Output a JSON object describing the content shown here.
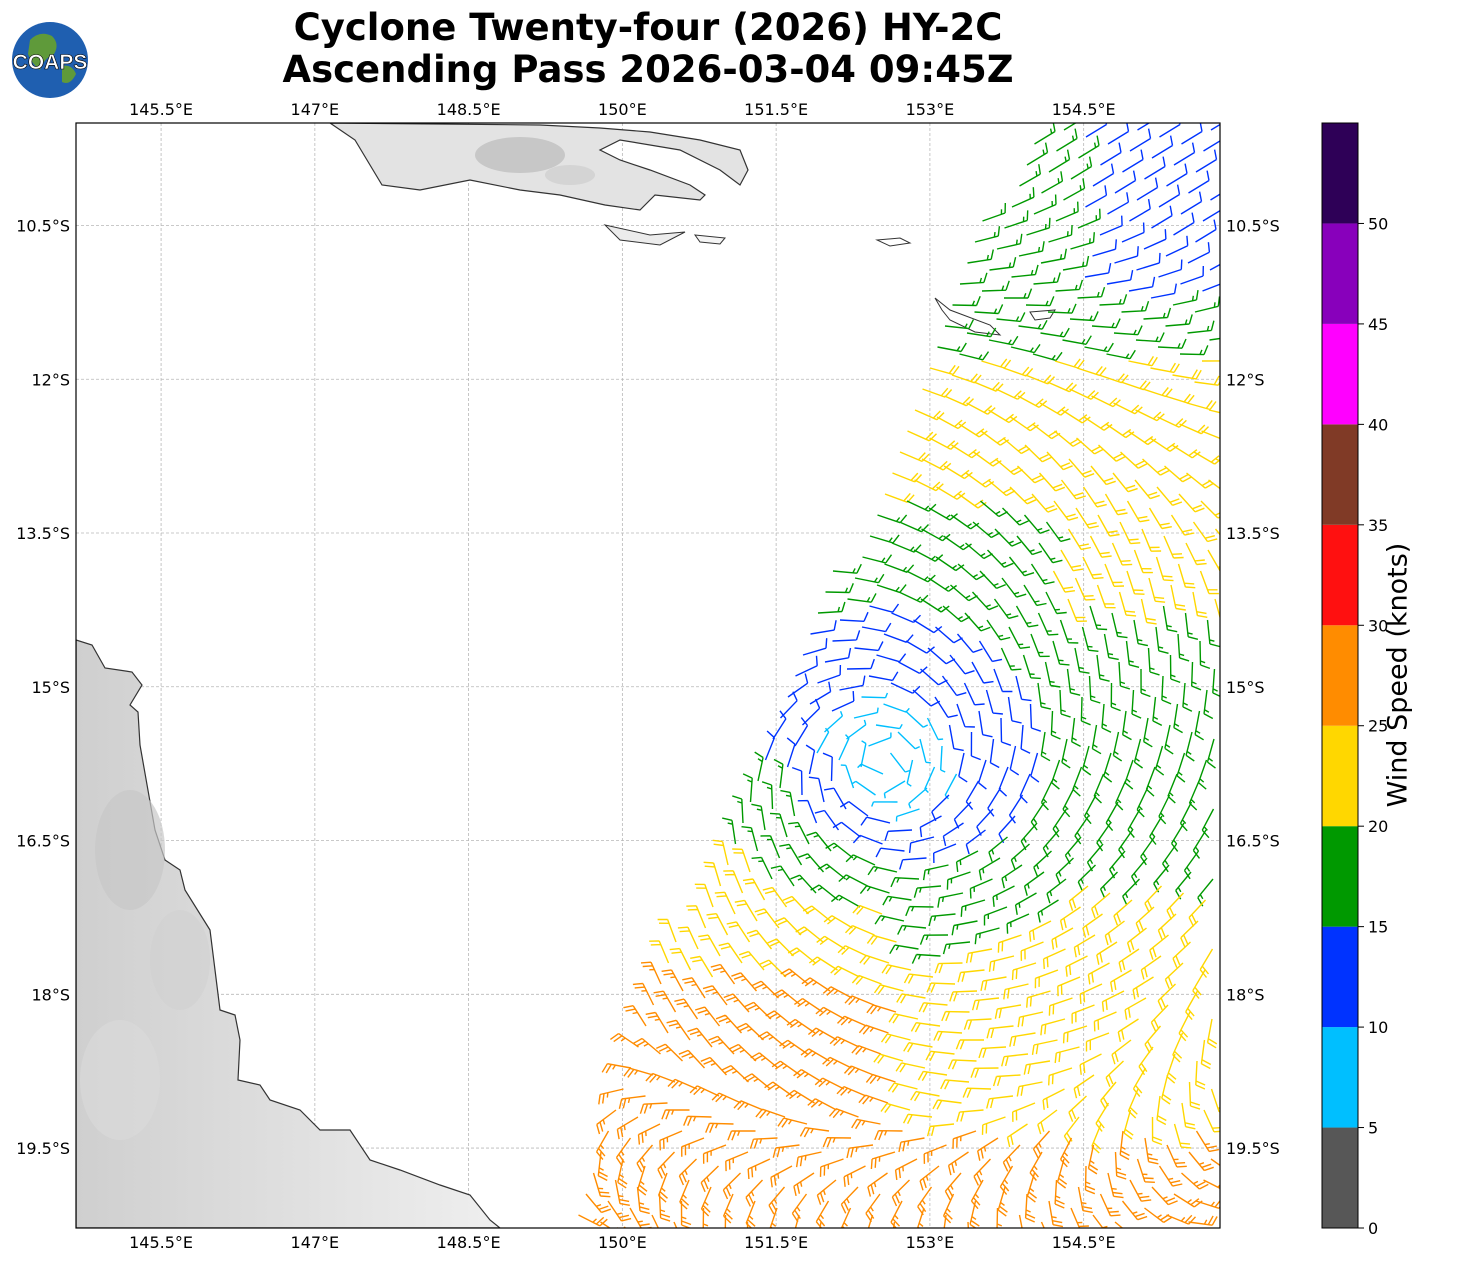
{
  "header": {
    "title_line1": "Cyclone Twenty-four (2026) HY-2C",
    "title_line2": "Ascending Pass 2026-03-04 09:45Z"
  },
  "logo": {
    "text": "COAPS",
    "icon": "globe-icon"
  },
  "map": {
    "lon_ticks": [
      {
        "value": 145.5,
        "label": "145.5°E"
      },
      {
        "value": 147,
        "label": "147°E"
      },
      {
        "value": 148.5,
        "label": "148.5°E"
      },
      {
        "value": 150,
        "label": "150°E"
      },
      {
        "value": 151.5,
        "label": "151.5°E"
      },
      {
        "value": 153,
        "label": "153°E"
      },
      {
        "value": 154.5,
        "label": "154.5°E"
      }
    ],
    "lat_ticks": [
      {
        "value": -10.5,
        "label": "10.5°S"
      },
      {
        "value": -12,
        "label": "12°S"
      },
      {
        "value": -13.5,
        "label": "13.5°S"
      },
      {
        "value": -15,
        "label": "15°S"
      },
      {
        "value": -16.5,
        "label": "16.5°S"
      },
      {
        "value": -18,
        "label": "18°S"
      },
      {
        "value": -19.5,
        "label": "19.5°S"
      }
    ],
    "lon_range": [
      144.67,
      155.83
    ],
    "lat_range": [
      -20.28,
      -9.5
    ],
    "storm_center": {
      "lon": 152.55,
      "lat": -15.75
    }
  },
  "colorbar": {
    "label": "Wind Speed (knots)",
    "bins": [
      {
        "min": 0,
        "max": 5,
        "color": "#575757"
      },
      {
        "min": 5,
        "max": 10,
        "color": "#00bfff"
      },
      {
        "min": 10,
        "max": 15,
        "color": "#0033ff"
      },
      {
        "min": 15,
        "max": 20,
        "color": "#009900"
      },
      {
        "min": 20,
        "max": 25,
        "color": "#ffd700"
      },
      {
        "min": 25,
        "max": 30,
        "color": "#ff8c00"
      },
      {
        "min": 30,
        "max": 35,
        "color": "#ff1010"
      },
      {
        "min": 35,
        "max": 40,
        "color": "#803a26"
      },
      {
        "min": 40,
        "max": 45,
        "color": "#ff00ff"
      },
      {
        "min": 45,
        "max": 50,
        "color": "#8800bb"
      },
      {
        "min": 50,
        "max": 55,
        "color": "#2e0057"
      }
    ],
    "ticks": [
      "0",
      "5",
      "10",
      "15",
      "20",
      "25",
      "30",
      "35",
      "40",
      "45",
      "50"
    ]
  }
}
